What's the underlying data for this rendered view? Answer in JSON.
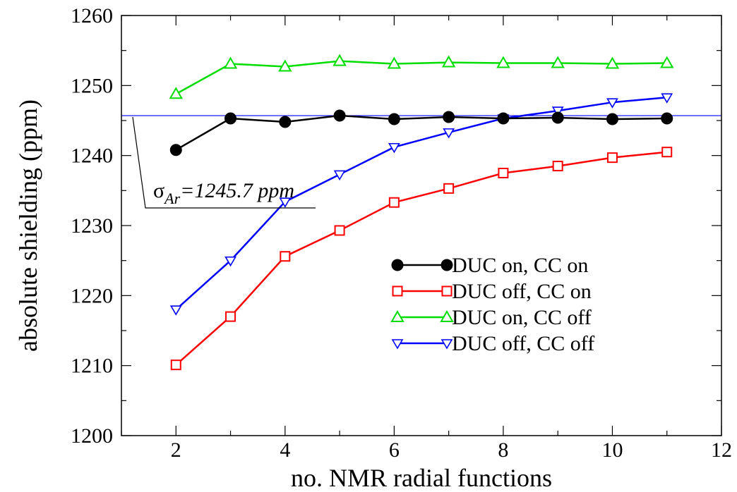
{
  "chart_data": {
    "type": "line",
    "title": "",
    "xlabel": "no. NMR radial functions",
    "ylabel": "absolute shielding (ppm)",
    "xlim": [
      1,
      12
    ],
    "ylim": [
      1200,
      1260
    ],
    "xticks": [
      2,
      4,
      6,
      8,
      10,
      12
    ],
    "yticks": [
      1200,
      1210,
      1220,
      1230,
      1240,
      1250,
      1260
    ],
    "x_tick_labels": [
      "2",
      "4",
      "6",
      "8",
      "10",
      "12"
    ],
    "y_tick_labels": [
      "1200",
      "1210",
      "1220",
      "1230",
      "1240",
      "1250",
      "1260"
    ],
    "grid": false,
    "legend_position": "lower-right",
    "x": [
      2,
      3,
      4,
      5,
      6,
      7,
      8,
      9,
      10,
      11
    ],
    "series": [
      {
        "name": "DUC on, CC on",
        "color": "#000000",
        "marker": "filled-circle",
        "values": [
          1240.8,
          1245.3,
          1244.8,
          1245.7,
          1245.2,
          1245.5,
          1245.3,
          1245.4,
          1245.2,
          1245.3
        ]
      },
      {
        "name": "DUC off, CC on",
        "color": "#ff0000",
        "marker": "open-square",
        "values": [
          1210.1,
          1217.0,
          1225.6,
          1229.3,
          1233.3,
          1235.3,
          1237.5,
          1238.5,
          1239.7,
          1240.5
        ]
      },
      {
        "name": "DUC on, CC off",
        "color": "#00dd00",
        "marker": "open-triangle-up",
        "values": [
          1248.8,
          1253.1,
          1252.7,
          1253.5,
          1253.1,
          1253.3,
          1253.2,
          1253.2,
          1253.1,
          1253.2
        ]
      },
      {
        "name": "DUC off, CC off",
        "color": "#0000ff",
        "marker": "open-triangle-down",
        "values": [
          1218.0,
          1225.0,
          1233.4,
          1237.3,
          1241.2,
          1243.3,
          1245.3,
          1246.4,
          1247.6,
          1248.3
        ]
      }
    ],
    "reference_line": {
      "y": 1245.7,
      "color": "#0000ff"
    },
    "annotation": {
      "symbol": "σ",
      "subscript": "Ar",
      "text": "=1245.7 ppm"
    }
  }
}
